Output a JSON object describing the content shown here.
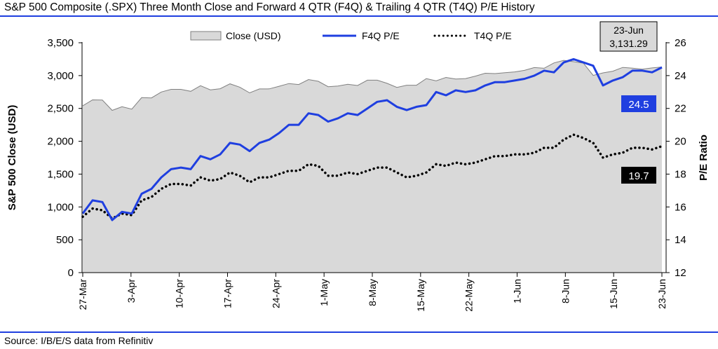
{
  "page": {
    "title": "S&P 500 Composite (.SPX) Three Month Close and Forward 4 QTR (F4Q) & Trailing 4 QTR (T4Q) P/E History",
    "source": "Source: I/B/E/S data from Refinitiv"
  },
  "chart_data": {
    "type": "line",
    "title": "S&P 500 Composite (.SPX) Three Month Close and Forward 4 QTR (F4Q) & Trailing 4 QTR (T4Q) P/E History",
    "ylabel": "S&P 500 Close (USD)",
    "y2label": "P/E Ratio",
    "ylim": [
      0,
      3500
    ],
    "y2lim": [
      12,
      26
    ],
    "y_ticks": [
      0,
      500,
      1000,
      1500,
      2000,
      2500,
      3000,
      3500
    ],
    "y_tick_labels": [
      "0",
      "500",
      "1,000",
      "1,500",
      "2,000",
      "2,500",
      "3,000",
      "3,500"
    ],
    "y2_ticks": [
      12,
      14,
      16,
      18,
      20,
      22,
      24,
      26
    ],
    "y2_tick_labels": [
      "12",
      "14",
      "16",
      "18",
      "20",
      "22",
      "24",
      "26"
    ],
    "x_tick_labels": [
      "27-Mar",
      "3-Apr",
      "10-Apr",
      "17-Apr",
      "24-Apr",
      "1-May",
      "8-May",
      "15-May",
      "22-May",
      "1-Jun",
      "8-Jun",
      "15-Jun",
      "23-Jun"
    ],
    "legend": {
      "placement": "top"
    },
    "callouts": {
      "date": "23-Jun",
      "close": "3,131.29",
      "f4q": "24.5",
      "t4q": "19.7"
    },
    "grid": false,
    "colors": {
      "close_fill": "#d9d9d9",
      "close_line": "#808080",
      "f4q": "#1f3fe0",
      "t4q": "#000000",
      "rule": "#1f3fe0",
      "callout_box": "#d9d9d9"
    },
    "series": [
      {
        "name": "Close (USD)",
        "axis": "left",
        "style": "area",
        "values": [
          2541,
          2630,
          2627,
          2470,
          2526,
          2489,
          2664,
          2660,
          2750,
          2790,
          2790,
          2761,
          2846,
          2783,
          2800,
          2875,
          2823,
          2737,
          2797,
          2798,
          2837,
          2879,
          2864,
          2940,
          2913,
          2831,
          2842,
          2868,
          2849,
          2930,
          2930,
          2882,
          2820,
          2853,
          2853,
          2955,
          2920,
          2972,
          2948,
          2955,
          2992,
          3036,
          3030,
          3044,
          3056,
          3080,
          3122,
          3112,
          3193,
          3232,
          3212,
          3190,
          3003,
          3041,
          3067,
          3124,
          3113,
          3098,
          3117,
          3131
        ]
      },
      {
        "name": "F4Q P/E",
        "axis": "right",
        "style": "line",
        "values": [
          15.6,
          16.4,
          16.3,
          15.2,
          15.7,
          15.6,
          16.8,
          17.1,
          17.8,
          18.3,
          18.4,
          18.3,
          19.1,
          18.9,
          19.2,
          19.9,
          19.8,
          19.4,
          19.9,
          20.1,
          20.5,
          21.0,
          21.0,
          21.7,
          21.6,
          21.2,
          21.4,
          21.7,
          21.6,
          22.0,
          22.4,
          22.5,
          22.1,
          21.9,
          22.1,
          22.2,
          23.0,
          22.8,
          23.1,
          23.0,
          23.1,
          23.4,
          23.6,
          23.6,
          23.7,
          23.8,
          24.0,
          24.3,
          24.2,
          24.8,
          25.0,
          24.8,
          24.6,
          23.4,
          23.7,
          23.9,
          24.3,
          24.3,
          24.2,
          24.5
        ]
      },
      {
        "name": "T4Q P/E",
        "axis": "right",
        "style": "dotted",
        "values": [
          15.4,
          15.9,
          15.8,
          15.3,
          15.6,
          15.5,
          16.4,
          16.6,
          17.1,
          17.4,
          17.4,
          17.3,
          17.8,
          17.6,
          17.7,
          18.1,
          17.9,
          17.5,
          17.8,
          17.8,
          18.0,
          18.2,
          18.2,
          18.6,
          18.5,
          17.9,
          17.9,
          18.1,
          18.0,
          18.2,
          18.4,
          18.4,
          18.1,
          17.8,
          17.9,
          18.1,
          18.6,
          18.5,
          18.7,
          18.6,
          18.7,
          18.9,
          19.1,
          19.1,
          19.2,
          19.2,
          19.3,
          19.6,
          19.6,
          20.1,
          20.4,
          20.2,
          19.9,
          19.0,
          19.2,
          19.3,
          19.6,
          19.6,
          19.5,
          19.7
        ]
      }
    ]
  }
}
